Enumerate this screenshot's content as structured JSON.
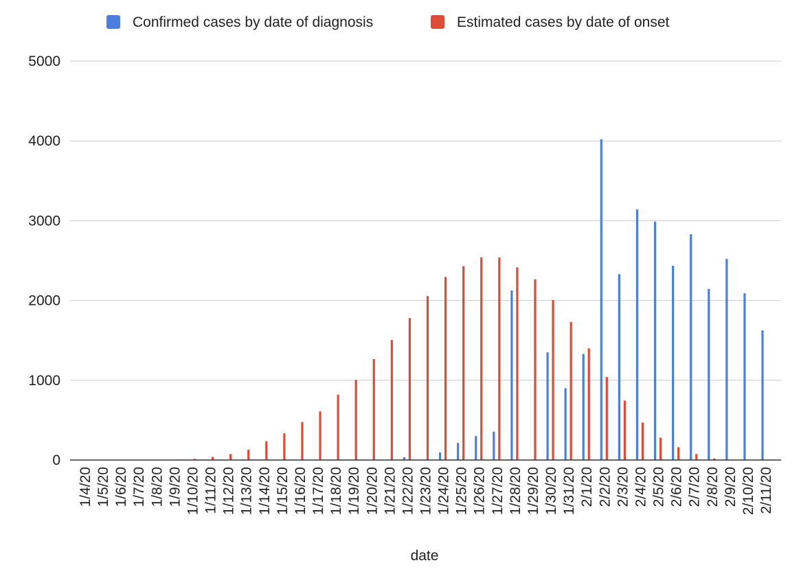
{
  "chart_data": {
    "type": "bar",
    "title": "",
    "xlabel": "date",
    "ylabel": "",
    "ylim": [
      0,
      5000
    ],
    "yticks": [
      0,
      1000,
      2000,
      3000,
      4000,
      5000
    ],
    "grid": true,
    "legend_position": "top",
    "categories": [
      "1/4/20",
      "1/5/20",
      "1/6/20",
      "1/7/20",
      "1/8/20",
      "1/9/20",
      "1/10/20",
      "1/11/20",
      "1/12/20",
      "1/13/20",
      "1/14/20",
      "1/15/20",
      "1/16/20",
      "1/17/20",
      "1/18/20",
      "1/19/20",
      "1/20/20",
      "1/21/20",
      "1/22/20",
      "1/23/20",
      "1/24/20",
      "1/25/20",
      "1/26/20",
      "1/27/20",
      "1/28/20",
      "1/29/20",
      "1/30/20",
      "1/31/20",
      "2/1/20",
      "2/2/20",
      "2/3/20",
      "2/4/20",
      "2/5/20",
      "2/6/20",
      "2/7/20",
      "2/8/20",
      "2/9/20",
      "2/10/20",
      "2/11/20"
    ],
    "series": [
      {
        "name": "Confirmed cases by date of diagnosis",
        "color": "#4a7fe0",
        "values": [
          0,
          0,
          0,
          0,
          0,
          0,
          0,
          0,
          0,
          0,
          0,
          0,
          0,
          0,
          0,
          0,
          0,
          0,
          35,
          0,
          95,
          215,
          300,
          355,
          2125,
          0,
          1350,
          900,
          1330,
          4020,
          2330,
          3140,
          2990,
          2435,
          2830,
          2145,
          2520,
          2090,
          1625
        ]
      },
      {
        "name": "Estimated cases by date of onset",
        "color": "#dd4b39",
        "values": [
          0,
          0,
          0,
          0,
          0,
          5,
          15,
          40,
          75,
          130,
          235,
          335,
          475,
          610,
          820,
          1005,
          1265,
          1505,
          1780,
          2055,
          2295,
          2430,
          2540,
          2540,
          2415,
          2265,
          2005,
          1730,
          1400,
          1040,
          745,
          470,
          280,
          160,
          75,
          20,
          5,
          0,
          0
        ]
      }
    ]
  }
}
